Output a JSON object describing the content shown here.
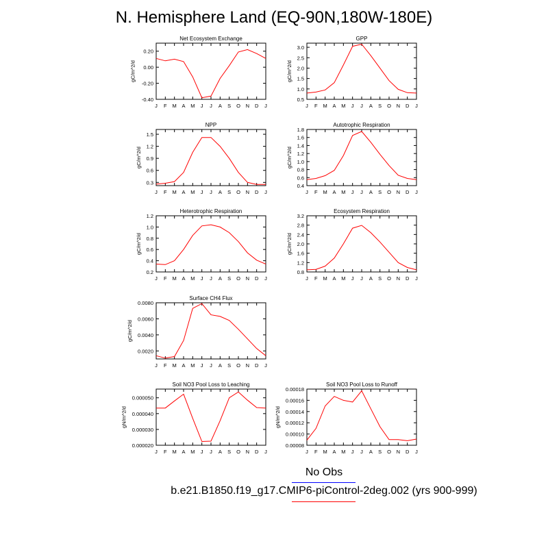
{
  "title": "N. Hemisphere Land (EQ-90N,180W-180E)",
  "legend": {
    "obs_label": "No Obs",
    "obs_color": "#0000ff",
    "model_label": "b.e21.B1850.f19_g17.CMIP6-piControl-2deg.002 (yrs 900-999)",
    "model_color": "#ff0000"
  },
  "chart_data": [
    {
      "type": "line",
      "title": "Net Ecosystem Exchange",
      "ylabel": "gC/m^2/d",
      "categories": [
        "J",
        "F",
        "M",
        "A",
        "M",
        "J",
        "J",
        "A",
        "S",
        "O",
        "N",
        "D",
        "J"
      ],
      "values": [
        0.11,
        0.08,
        0.1,
        0.07,
        -0.12,
        -0.38,
        -0.36,
        -0.14,
        0.02,
        0.19,
        0.22,
        0.17,
        0.11
      ],
      "ylim": [
        -0.4,
        0.3
      ],
      "yticks": [
        -0.4,
        -0.2,
        0.0,
        0.2
      ],
      "ytick_labels": [
        "-0.40",
        "-0.20",
        "0.00",
        "0.20"
      ]
    },
    {
      "type": "line",
      "title": "GPP",
      "ylabel": "gC/m^2/d",
      "categories": [
        "J",
        "F",
        "M",
        "A",
        "M",
        "J",
        "J",
        "A",
        "S",
        "O",
        "N",
        "D",
        "J"
      ],
      "values": [
        0.8,
        0.85,
        0.95,
        1.3,
        2.15,
        3.05,
        3.15,
        2.6,
        2.0,
        1.4,
        0.98,
        0.82,
        0.8
      ],
      "ylim": [
        0.5,
        3.2
      ],
      "yticks": [
        0.5,
        1.0,
        1.5,
        2.0,
        2.5,
        3.0
      ],
      "ytick_labels": [
        "0.5",
        "1.0",
        "1.5",
        "2.0",
        "2.5",
        "3.0"
      ]
    },
    {
      "type": "line",
      "title": "NPP",
      "ylabel": "gC/m^2/d",
      "categories": [
        "J",
        "F",
        "M",
        "A",
        "M",
        "J",
        "J",
        "A",
        "S",
        "O",
        "N",
        "D",
        "J"
      ],
      "values": [
        0.26,
        0.28,
        0.32,
        0.55,
        1.05,
        1.42,
        1.42,
        1.2,
        0.9,
        0.55,
        0.3,
        0.25,
        0.25
      ],
      "ylim": [
        0.22,
        1.62
      ],
      "yticks": [
        0.3,
        0.6,
        0.9,
        1.2,
        1.5
      ],
      "ytick_labels": [
        "0.3",
        "0.6",
        "0.9",
        "1.2",
        "1.5"
      ]
    },
    {
      "type": "line",
      "title": "Autotrophic Respiration",
      "ylabel": "gC/m^2/d",
      "categories": [
        "J",
        "F",
        "M",
        "A",
        "M",
        "J",
        "J",
        "A",
        "S",
        "O",
        "N",
        "D",
        "J"
      ],
      "values": [
        0.55,
        0.58,
        0.65,
        0.78,
        1.15,
        1.65,
        1.75,
        1.48,
        1.18,
        0.9,
        0.66,
        0.58,
        0.55
      ],
      "ylim": [
        0.4,
        1.8
      ],
      "yticks": [
        0.4,
        0.6,
        0.8,
        1.0,
        1.2,
        1.4,
        1.6,
        1.8
      ],
      "ytick_labels": [
        "0.4",
        "0.6",
        "0.8",
        "1.0",
        "1.2",
        "1.4",
        "1.6",
        "1.8"
      ]
    },
    {
      "type": "line",
      "title": "Heterotrophic Respiration",
      "ylabel": "gC/m^2/d",
      "categories": [
        "J",
        "F",
        "M",
        "A",
        "M",
        "J",
        "J",
        "A",
        "S",
        "O",
        "N",
        "D",
        "J"
      ],
      "values": [
        0.34,
        0.33,
        0.4,
        0.6,
        0.85,
        1.02,
        1.04,
        1.0,
        0.9,
        0.74,
        0.54,
        0.41,
        0.34
      ],
      "ylim": [
        0.2,
        1.2
      ],
      "yticks": [
        0.2,
        0.4,
        0.6,
        0.8,
        1.0,
        1.2
      ],
      "ytick_labels": [
        "0.2",
        "0.4",
        "0.6",
        "0.8",
        "1.0",
        "1.2"
      ]
    },
    {
      "type": "line",
      "title": "Ecosystem Respiration",
      "ylabel": "gC/m^2/d",
      "categories": [
        "J",
        "F",
        "M",
        "A",
        "M",
        "J",
        "J",
        "A",
        "S",
        "O",
        "N",
        "D",
        "J"
      ],
      "values": [
        0.89,
        0.91,
        1.05,
        1.39,
        2.0,
        2.67,
        2.79,
        2.48,
        2.08,
        1.64,
        1.2,
        0.99,
        0.89
      ],
      "ylim": [
        0.8,
        3.2
      ],
      "yticks": [
        0.8,
        1.2,
        1.6,
        2.0,
        2.4,
        2.8,
        3.2
      ],
      "ytick_labels": [
        "0.8",
        "1.2",
        "1.6",
        "2.0",
        "2.4",
        "2.8",
        "3.2"
      ]
    },
    {
      "type": "line",
      "title": "Surface CH4 Flux",
      "ylabel": "gC/m^2/d",
      "categories": [
        "J",
        "F",
        "M",
        "A",
        "M",
        "J",
        "J",
        "A",
        "S",
        "O",
        "N",
        "D",
        "J"
      ],
      "values": [
        0.0014,
        0.0011,
        0.0013,
        0.0033,
        0.0073,
        0.0079,
        0.0065,
        0.0063,
        0.0058,
        0.0047,
        0.0035,
        0.0023,
        0.0014
      ],
      "ylim": [
        0.001,
        0.008
      ],
      "yticks": [
        0.002,
        0.004,
        0.006,
        0.008
      ],
      "ytick_labels": [
        "0.0020",
        "0.0040",
        "0.0060",
        "0.0080"
      ]
    },
    {
      "type": "line",
      "title": "Soil NO3 Pool Loss to Leaching",
      "ylabel": "gN/m^2/d",
      "categories": [
        "J",
        "F",
        "M",
        "A",
        "M",
        "J",
        "J",
        "A",
        "S",
        "O",
        "N",
        "D",
        "J"
      ],
      "values": [
        4.35e-05,
        4.35e-05,
        4.8e-05,
        5.23e-05,
        3.7e-05,
        2.24e-05,
        2.26e-05,
        3.55e-05,
        5e-05,
        5.37e-05,
        4.85e-05,
        4.38e-05,
        4.35e-05
      ],
      "ylim": [
        2e-05,
        5.55e-05
      ],
      "yticks": [
        2e-05,
        3e-05,
        4e-05,
        5e-05
      ],
      "ytick_labels": [
        "0.000020",
        "0.000030",
        "0.000040",
        "0.000050"
      ]
    },
    {
      "type": "line",
      "title": "Soil NO3 Pool Loss to Runoff",
      "ylabel": "gN/m^2/d",
      "categories": [
        "J",
        "F",
        "M",
        "A",
        "M",
        "J",
        "J",
        "A",
        "S",
        "O",
        "N",
        "D",
        "J"
      ],
      "values": [
        8.9e-05,
        0.00011,
        0.00015,
        0.000167,
        0.00016,
        0.000157,
        0.000177,
        0.000145,
        0.000113,
        9e-05,
        9e-05,
        8.8e-05,
        9.1e-05
      ],
      "ylim": [
        8e-05,
        0.00018
      ],
      "yticks": [
        8e-05,
        0.0001,
        0.00012,
        0.00014,
        0.00016,
        0.00018
      ],
      "ytick_labels": [
        "0.00008",
        "0.00010",
        "0.00012",
        "0.00014",
        "0.00016",
        "0.00018"
      ]
    }
  ]
}
